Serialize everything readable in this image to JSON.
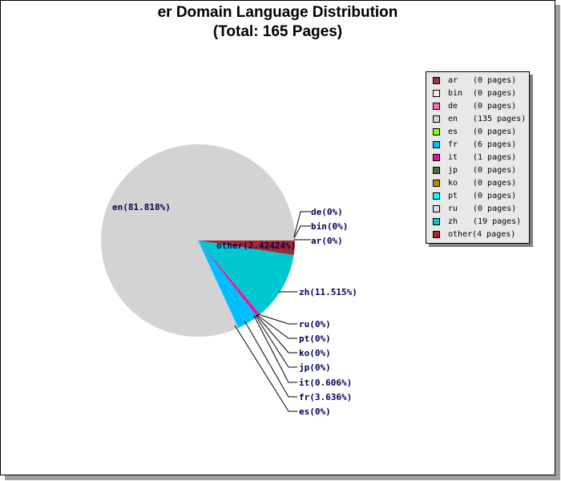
{
  "title": {
    "line1": "er Domain Language Distribution",
    "line2": "(Total: 165 Pages)"
  },
  "chart_data": {
    "type": "pie",
    "title": "er Domain Language Distribution (Total: 165 Pages)",
    "total_pages": 165,
    "legend_position": "right",
    "slices": [
      {
        "code": "ar",
        "pages": 0,
        "percent_label": "ar(0%)",
        "count_label": "(0 pages)",
        "color": "#a03050"
      },
      {
        "code": "bin",
        "pages": 0,
        "percent_label": "bin(0%)",
        "count_label": "(0 pages)",
        "color": "#f5f0e0"
      },
      {
        "code": "de",
        "pages": 0,
        "percent_label": "de(0%)",
        "count_label": "(0 pages)",
        "color": "#ff66bb"
      },
      {
        "code": "en",
        "pages": 135,
        "percent_label": "en(81.818%)",
        "count_label": "(135 pages)",
        "color": "#d3d3d3"
      },
      {
        "code": "es",
        "pages": 0,
        "percent_label": "es(0%)",
        "count_label": "(0 pages)",
        "color": "#80ff00"
      },
      {
        "code": "fr",
        "pages": 6,
        "percent_label": "fr(3.636%)",
        "count_label": "(6 pages)",
        "color": "#00bfff"
      },
      {
        "code": "it",
        "pages": 1,
        "percent_label": "it(0.606%)",
        "count_label": "(1 pages)",
        "color": "#ee1099"
      },
      {
        "code": "jp",
        "pages": 0,
        "percent_label": "jp(0%)",
        "count_label": "(0 pages)",
        "color": "#556b2f"
      },
      {
        "code": "ko",
        "pages": 0,
        "percent_label": "ko(0%)",
        "count_label": "(0 pages)",
        "color": "#b8860b"
      },
      {
        "code": "pt",
        "pages": 0,
        "percent_label": "pt(0%)",
        "count_label": "(0 pages)",
        "color": "#00ffff"
      },
      {
        "code": "ru",
        "pages": 0,
        "percent_label": "ru(0%)",
        "count_label": "(0 pages)",
        "color": "#dcdcdc"
      },
      {
        "code": "zh",
        "pages": 19,
        "percent_label": "zh(11.515%)",
        "count_label": "(19 pages)",
        "color": "#00c8d0"
      },
      {
        "code": "other",
        "pages": 4,
        "percent_label": "other(2.42424%)",
        "count_label": "(4 pages)",
        "color": "#a52a2a"
      }
    ]
  }
}
